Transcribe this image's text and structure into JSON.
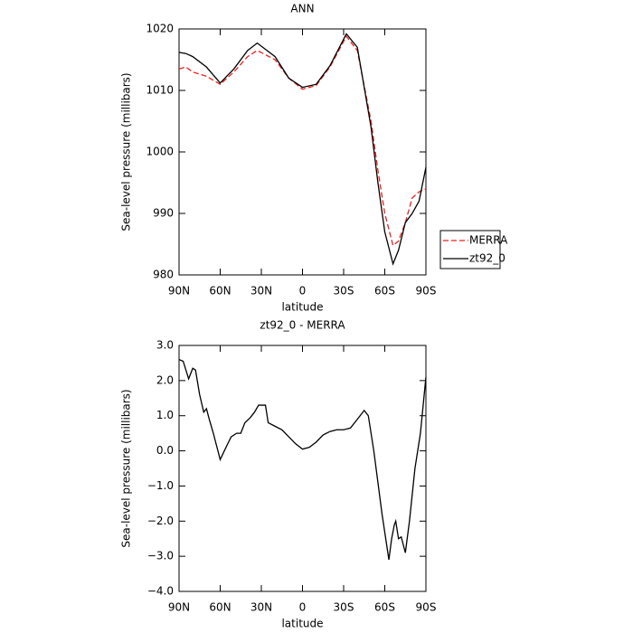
{
  "chart_data": [
    {
      "type": "line",
      "title": "ANN",
      "xlabel": "latitude",
      "ylabel": "Sea-level pressure (millibars)",
      "x": [
        90,
        85,
        80,
        70,
        60,
        50,
        40,
        33,
        20,
        10,
        0,
        -10,
        -20,
        -32,
        -40,
        -50,
        -55,
        -60,
        -66,
        -70,
        -75,
        -80,
        -85,
        -90
      ],
      "series": [
        {
          "name": "MERRA",
          "color": "#e8211d",
          "dash": true,
          "values": [
            1013.5,
            1013.8,
            1013,
            1012.3,
            1011,
            1013,
            1015.5,
            1016.5,
            1015,
            1012,
            1010.2,
            1010.8,
            1013.8,
            1018.8,
            1016.5,
            1005,
            997,
            990,
            984.8,
            985.5,
            988.5,
            992.5,
            993.5,
            994
          ]
        },
        {
          "name": "zt92_0",
          "color": "#000000",
          "dash": false,
          "values": [
            1016.2,
            1016,
            1015.5,
            1013.8,
            1011.2,
            1013.5,
            1016.5,
            1017.7,
            1015.5,
            1012,
            1010.5,
            1011,
            1014,
            1019.2,
            1017,
            1004,
            995,
            987,
            981.8,
            984,
            988.5,
            990,
            992,
            997.5
          ]
        }
      ],
      "xlim": [
        90,
        -90
      ],
      "xticks": [
        {
          "value": 90,
          "label": "90N"
        },
        {
          "value": 60,
          "label": "60N"
        },
        {
          "value": 30,
          "label": "30N"
        },
        0,
        {
          "value": -30,
          "label": "30S"
        },
        {
          "value": -60,
          "label": "60S"
        },
        {
          "value": -90,
          "label": "90S"
        }
      ],
      "ylim": [
        980,
        1020
      ],
      "yticks": [
        980,
        990,
        1000,
        1010,
        1020
      ],
      "legend": "right"
    },
    {
      "type": "line",
      "title": "zt92_0 - MERRA",
      "xlabel": "latitude",
      "ylabel": "Sea-level pressure (millibars)",
      "x": [
        90,
        87,
        83,
        80,
        78,
        75,
        72,
        70,
        68,
        65,
        60,
        57,
        52,
        48,
        45,
        42,
        38,
        35,
        32,
        27,
        25,
        20,
        15,
        10,
        5,
        0,
        -5,
        -10,
        -15,
        -20,
        -25,
        -30,
        -35,
        -40,
        -45,
        -48,
        -52,
        -58,
        -63,
        -65,
        -67,
        -68,
        -70,
        -72,
        -75,
        -78,
        -82,
        -86,
        -90
      ],
      "series": [
        {
          "name": null,
          "color": "#000000",
          "dash": false,
          "values": [
            2.6,
            2.55,
            2.05,
            2.35,
            2.3,
            1.6,
            1.1,
            1.2,
            0.9,
            0.5,
            -0.25,
            0.0,
            0.4,
            0.5,
            0.5,
            0.8,
            0.95,
            1.1,
            1.3,
            1.3,
            0.8,
            0.7,
            0.6,
            0.4,
            0.2,
            0.05,
            0.1,
            0.25,
            0.45,
            0.55,
            0.6,
            0.6,
            0.65,
            0.9,
            1.15,
            1.0,
            0.0,
            -1.8,
            -3.1,
            -2.5,
            -2.1,
            -2.0,
            -2.5,
            -2.45,
            -2.9,
            -2.0,
            -0.5,
            0.5,
            2.1
          ]
        }
      ],
      "xlim": [
        90,
        -90
      ],
      "xticks": [
        {
          "value": 90,
          "label": "90N"
        },
        {
          "value": 60,
          "label": "60N"
        },
        {
          "value": 30,
          "label": "30N"
        },
        0,
        {
          "value": -30,
          "label": "30S"
        },
        {
          "value": -60,
          "label": "60S"
        },
        {
          "value": -90,
          "label": "90S"
        }
      ],
      "ylim": [
        -4,
        3
      ],
      "yticks": [
        {
          "value": -4,
          "label": "−4.0"
        },
        {
          "value": -3,
          "label": "−3.0"
        },
        {
          "value": -2,
          "label": "−2.0"
        },
        {
          "value": -1,
          "label": "−1.0"
        },
        {
          "value": 0,
          "label": "0.0"
        },
        {
          "value": 1,
          "label": "1.0"
        },
        {
          "value": 2,
          "label": "2.0"
        },
        {
          "value": 3,
          "label": "3.0"
        }
      ]
    }
  ]
}
